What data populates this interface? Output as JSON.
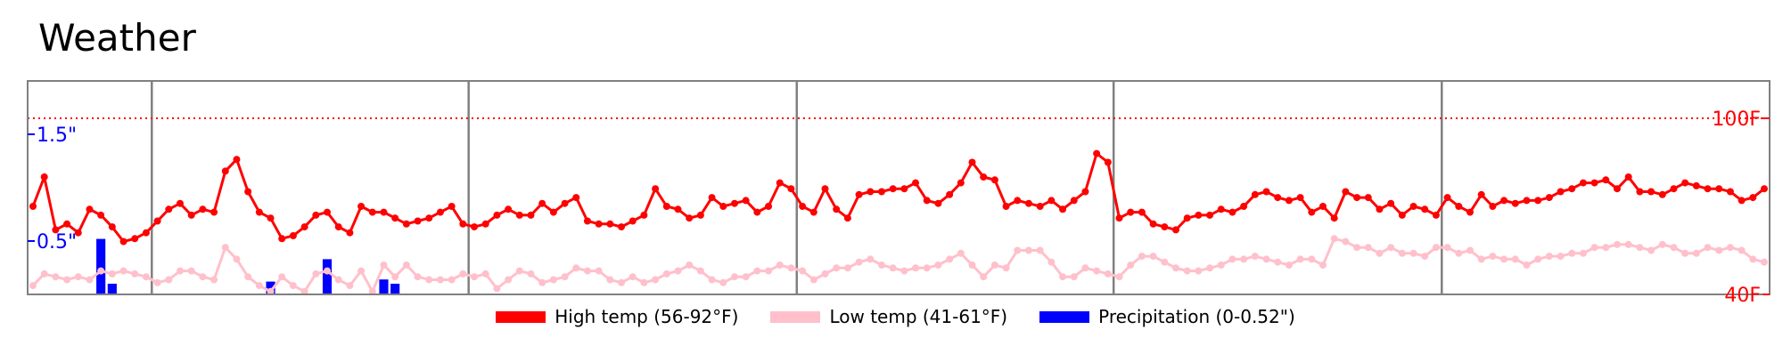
{
  "chart_data": {
    "type": "line",
    "title": "Weather",
    "temp_axis": {
      "range": [
        40,
        100
      ],
      "ticks": [
        {
          "value": 100,
          "label": "100F"
        },
        {
          "value": 40,
          "label": "40F"
        }
      ],
      "color": "#ff0000"
    },
    "precip_axis": {
      "range": [
        0,
        2
      ],
      "ticks": [
        {
          "value": 1.5,
          "label": "1.5\""
        },
        {
          "value": 0.5,
          "label": "0.5\""
        }
      ],
      "color": "#0000ff"
    },
    "reference_line": {
      "value": 100,
      "style": "dotted",
      "color": "#ff0000"
    },
    "month_dividers": [
      10.5,
      38.5,
      67.5,
      95.5,
      124.5
    ],
    "grid": false,
    "legend_position": "bottom-center",
    "series": [
      {
        "name": "High temp (56-92°F)",
        "color": "#ff0000",
        "values": [
          70,
          80,
          62,
          64,
          61,
          69,
          67,
          63,
          58,
          59,
          61,
          65,
          69,
          71,
          67,
          69,
          68,
          82,
          86,
          75,
          68,
          66,
          59,
          60,
          63,
          67,
          68,
          63,
          61,
          70,
          68,
          68,
          66,
          64,
          65,
          66,
          68,
          70,
          64,
          63,
          64,
          67,
          69,
          67,
          67,
          71,
          68,
          71,
          73,
          65,
          64,
          64,
          63,
          65,
          67,
          76,
          70,
          69,
          66,
          67,
          73,
          70,
          71,
          72,
          68,
          70,
          78,
          76,
          70,
          68,
          76,
          69,
          66,
          74,
          75,
          75,
          76,
          76,
          78,
          72,
          71,
          74,
          78,
          85,
          80,
          79,
          70,
          72,
          71,
          70,
          72,
          69,
          72,
          75,
          88,
          85,
          66,
          68,
          68,
          64,
          63,
          62,
          66,
          67,
          67,
          69,
          68,
          70,
          74,
          75,
          73,
          72,
          73,
          68,
          70,
          66,
          75,
          73,
          73,
          69,
          71,
          67,
          70,
          69,
          67,
          73,
          70,
          68,
          74,
          70,
          72,
          71,
          72,
          72,
          73,
          75,
          76,
          78,
          78,
          79,
          76,
          80,
          75,
          75,
          74,
          76,
          78,
          77,
          76,
          76,
          75,
          72,
          73,
          76
        ]
      },
      {
        "name": "Low temp (41-61°F)",
        "color": "#ffc0cb",
        "values": [
          43,
          47,
          46,
          45,
          46,
          45,
          48,
          47,
          48,
          47,
          46,
          44,
          45,
          48,
          48,
          46,
          45,
          56,
          52,
          46,
          43,
          41,
          46,
          43,
          41,
          47,
          48,
          45,
          43,
          48,
          41,
          50,
          46,
          50,
          46,
          45,
          45,
          45,
          47,
          46,
          47,
          42,
          45,
          48,
          47,
          44,
          45,
          46,
          49,
          48,
          48,
          45,
          44,
          46,
          44,
          45,
          47,
          48,
          50,
          48,
          45,
          44,
          46,
          46,
          48,
          48,
          50,
          49,
          48,
          45,
          47,
          49,
          49,
          51,
          52,
          50,
          49,
          48,
          49,
          49,
          50,
          52,
          54,
          50,
          46,
          50,
          49,
          55,
          55,
          55,
          51,
          46,
          46,
          49,
          48,
          47,
          46,
          50,
          53,
          53,
          51,
          49,
          48,
          48,
          49,
          50,
          52,
          52,
          53,
          52,
          51,
          50,
          52,
          52,
          50,
          59,
          58,
          56,
          56,
          54,
          56,
          54,
          54,
          53,
          56,
          56,
          54,
          55,
          52,
          53,
          52,
          52,
          50,
          52,
          53,
          53,
          54,
          54,
          56,
          56,
          57,
          57,
          56,
          55,
          57,
          56,
          54,
          54,
          56,
          55,
          56,
          55,
          52,
          51
        ]
      },
      {
        "name": "Precipitation (0-0.52\")",
        "color": "#0000ff",
        "kind": "bar",
        "values": [
          0,
          0,
          0,
          0,
          0,
          0,
          0.52,
          0.1,
          0,
          0,
          0,
          0,
          0,
          0,
          0,
          0,
          0,
          0,
          0,
          0,
          0,
          0.12,
          0,
          0,
          0,
          0,
          0.33,
          0,
          0,
          0,
          0,
          0.14,
          0.1,
          0,
          0,
          0,
          0,
          0,
          0,
          0,
          0,
          0,
          0,
          0,
          0,
          0,
          0,
          0,
          0,
          0,
          0,
          0,
          0,
          0,
          0,
          0,
          0,
          0,
          0,
          0,
          0,
          0,
          0,
          0,
          0,
          0,
          0,
          0,
          0,
          0,
          0,
          0,
          0,
          0,
          0,
          0,
          0,
          0,
          0,
          0,
          0,
          0,
          0,
          0,
          0,
          0,
          0,
          0,
          0,
          0,
          0,
          0,
          0,
          0,
          0,
          0,
          0,
          0,
          0,
          0,
          0,
          0,
          0,
          0,
          0,
          0,
          0,
          0,
          0,
          0,
          0,
          0,
          0,
          0,
          0,
          0,
          0,
          0,
          0,
          0,
          0,
          0,
          0,
          0,
          0,
          0,
          0,
          0,
          0,
          0,
          0,
          0,
          0,
          0,
          0,
          0,
          0,
          0,
          0,
          0,
          0,
          0,
          0,
          0,
          0,
          0,
          0,
          0,
          0,
          0,
          0,
          0,
          0,
          0
        ]
      }
    ]
  }
}
